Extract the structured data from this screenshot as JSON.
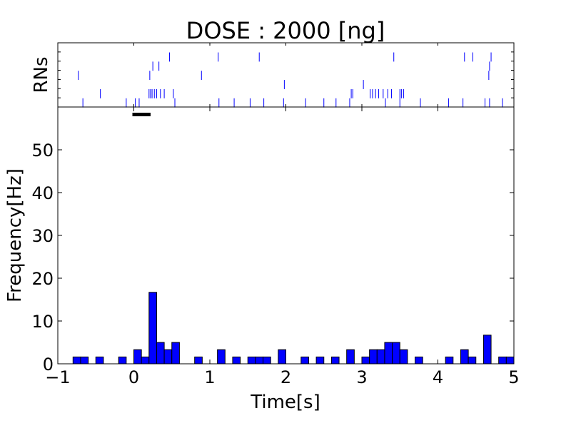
{
  "chart_data": [
    {
      "type": "raster",
      "title": "DOSE : 2000 [ng]",
      "ylabel": "RNs",
      "xlim": [
        -1,
        5
      ],
      "stimulus_bar": [
        0,
        0.22
      ],
      "trials": [
        [
          -0.67,
          -0.1,
          0.02,
          0.07,
          0.54,
          1.12,
          1.32,
          1.53,
          1.71,
          1.97,
          2.26,
          2.5,
          2.66,
          2.84,
          3.31,
          3.5,
          3.77,
          4.14,
          4.33,
          4.62,
          4.68,
          4.85
        ],
        [
          -0.44,
          0.2,
          0.22,
          0.24,
          0.27,
          0.3,
          0.35,
          0.4,
          0.52,
          2.86,
          2.88,
          3.11,
          3.14,
          3.18,
          3.22,
          3.28,
          3.34,
          3.39,
          3.5,
          3.52,
          3.55
        ],
        [
          1.98,
          3.02
        ],
        [
          -0.73,
          0.21,
          0.89,
          4.67
        ],
        [
          0.25,
          0.33,
          4.68
        ],
        [
          0.47,
          1.11,
          1.65,
          3.42,
          4.35,
          4.46,
          4.7
        ]
      ]
    },
    {
      "type": "bar",
      "xlabel": "Time[s]",
      "ylabel": "Frequency[Hz]",
      "xlim": [
        -1,
        5
      ],
      "ylim": [
        0,
        60
      ],
      "bin_width": 0.1,
      "xticks": [
        "−1",
        "0",
        "1",
        "2",
        "3",
        "4",
        "5"
      ],
      "yticks": [
        "0",
        "10",
        "20",
        "30",
        "40",
        "50"
      ],
      "bars": [
        {
          "x": -0.8,
          "y": 1.6
        },
        {
          "x": -0.7,
          "y": 1.6
        },
        {
          "x": -0.5,
          "y": 1.6
        },
        {
          "x": -0.2,
          "y": 1.6
        },
        {
          "x": 0.0,
          "y": 3.3
        },
        {
          "x": 0.1,
          "y": 1.6
        },
        {
          "x": 0.2,
          "y": 16.7
        },
        {
          "x": 0.3,
          "y": 5.0
        },
        {
          "x": 0.4,
          "y": 3.3
        },
        {
          "x": 0.5,
          "y": 5.0
        },
        {
          "x": 0.8,
          "y": 1.6
        },
        {
          "x": 1.1,
          "y": 3.3
        },
        {
          "x": 1.3,
          "y": 1.6
        },
        {
          "x": 1.5,
          "y": 1.6
        },
        {
          "x": 1.6,
          "y": 1.6
        },
        {
          "x": 1.7,
          "y": 1.6
        },
        {
          "x": 1.9,
          "y": 3.3
        },
        {
          "x": 2.2,
          "y": 1.6
        },
        {
          "x": 2.4,
          "y": 1.6
        },
        {
          "x": 2.6,
          "y": 1.6
        },
        {
          "x": 2.8,
          "y": 3.3
        },
        {
          "x": 3.0,
          "y": 1.6
        },
        {
          "x": 3.1,
          "y": 3.3
        },
        {
          "x": 3.2,
          "y": 3.3
        },
        {
          "x": 3.3,
          "y": 5.0
        },
        {
          "x": 3.4,
          "y": 5.0
        },
        {
          "x": 3.5,
          "y": 3.3
        },
        {
          "x": 3.7,
          "y": 1.6
        },
        {
          "x": 4.1,
          "y": 1.6
        },
        {
          "x": 4.3,
          "y": 3.3
        },
        {
          "x": 4.4,
          "y": 1.6
        },
        {
          "x": 4.6,
          "y": 6.7
        },
        {
          "x": 4.8,
          "y": 1.6
        },
        {
          "x": 4.9,
          "y": 1.6
        }
      ]
    }
  ],
  "colors": {
    "bar_fill": "#0000ff",
    "bar_edge": "#000000",
    "spike": "#0000ff",
    "axes": "#000000",
    "stimulus": "#000000"
  }
}
